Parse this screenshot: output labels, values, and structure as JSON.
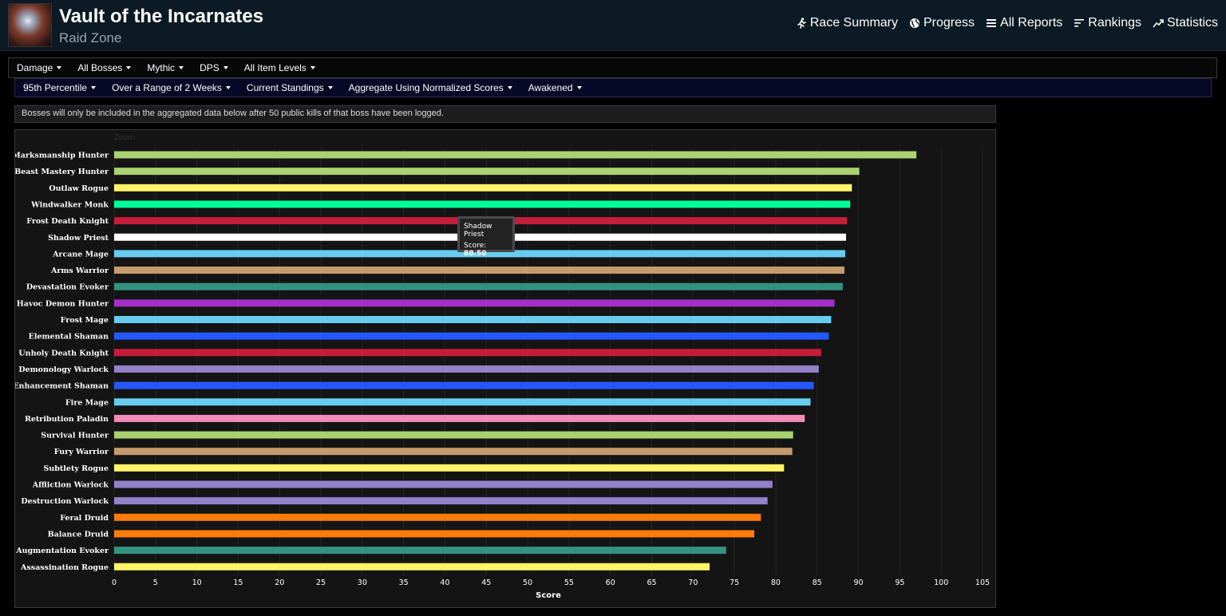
{
  "header": {
    "title": "Vault of the Incarnates",
    "subtitle": "Raid Zone",
    "nav": [
      {
        "label": "Race Summary",
        "icon": "runner-icon"
      },
      {
        "label": "Progress",
        "icon": "globe-icon"
      },
      {
        "label": "All Reports",
        "icon": "list-icon"
      },
      {
        "label": "Rankings",
        "icon": "rankings-icon"
      },
      {
        "label": "Statistics",
        "icon": "trend-icon"
      }
    ]
  },
  "filters_row1": [
    "Damage",
    "All Bosses",
    "Mythic",
    "DPS",
    "All Item Levels"
  ],
  "filters_row2": [
    "95th Percentile",
    "Over a Range of 2 Weeks",
    "Current Standings",
    "Aggregate Using Normalized Scores",
    "Awakened"
  ],
  "notice": "Bosses will only be included in the aggregated data below after 50 public kills of that boss have been logged.",
  "zoom_label": "Zoom",
  "tooltip": {
    "name": "Shadow Priest",
    "score_label": "Score:",
    "score_value": "88.50"
  },
  "chart_data": {
    "type": "bar",
    "orientation": "horizontal",
    "xlabel": "Score",
    "xlim": [
      0,
      105
    ],
    "xticks": [
      0,
      5,
      10,
      15,
      20,
      25,
      30,
      35,
      40,
      45,
      50,
      55,
      60,
      65,
      70,
      75,
      80,
      85,
      90,
      95,
      100,
      105
    ],
    "grid": true,
    "categories": [
      "Marksmanship Hunter",
      "Beast Mastery Hunter",
      "Outlaw Rogue",
      "Windwalker Monk",
      "Frost Death Knight",
      "Shadow Priest",
      "Arcane Mage",
      "Arms Warrior",
      "Devastation Evoker",
      "Havoc Demon Hunter",
      "Frost Mage",
      "Elemental Shaman",
      "Unholy Death Knight",
      "Demonology Warlock",
      "Enhancement Shaman",
      "Fire Mage",
      "Retribution Paladin",
      "Survival Hunter",
      "Fury Warrior",
      "Subtlety Rogue",
      "Affliction Warlock",
      "Destruction Warlock",
      "Feral Druid",
      "Balance Druid",
      "Augmentation Evoker",
      "Assassination Rogue"
    ],
    "values": [
      97.0,
      90.1,
      89.2,
      89.0,
      88.6,
      88.5,
      88.4,
      88.3,
      88.1,
      87.1,
      86.7,
      86.4,
      85.5,
      85.2,
      84.6,
      84.2,
      83.5,
      82.1,
      82.0,
      81.0,
      79.6,
      79.0,
      78.2,
      77.4,
      74.0,
      72.0
    ],
    "colors": [
      "#a9d271",
      "#a9d271",
      "#fff468",
      "#00ff98",
      "#c41e3a",
      "#ffffff",
      "#68ccef",
      "#c69b6d",
      "#33937f",
      "#a330c9",
      "#68ccef",
      "#2459ff",
      "#c41e3a",
      "#9382c9",
      "#2459ff",
      "#68ccef",
      "#f48cba",
      "#a9d271",
      "#c69b6d",
      "#fff468",
      "#9382c9",
      "#9382c9",
      "#ff7c0a",
      "#ff7c0a",
      "#33937f",
      "#fff468"
    ]
  }
}
